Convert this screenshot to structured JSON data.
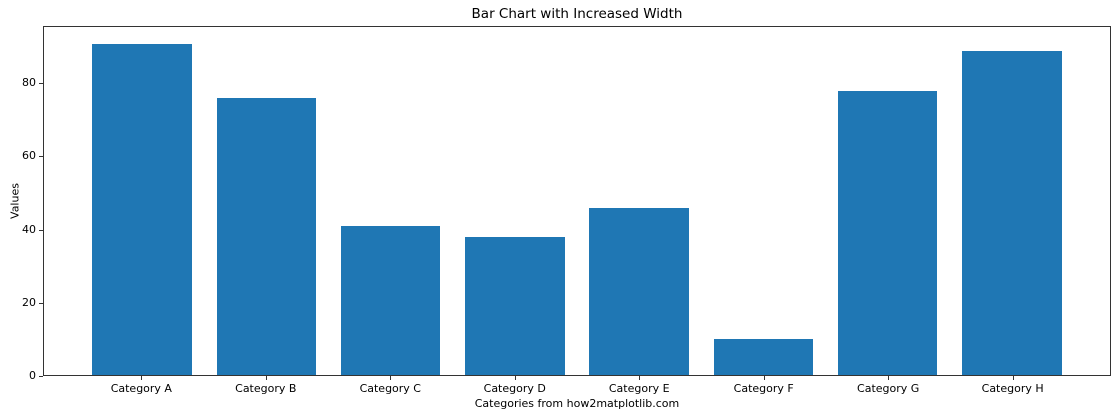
{
  "figure": {
    "background": "#ffffff",
    "frame_color": "#333333"
  },
  "chart_data": {
    "type": "bar",
    "title": "Bar Chart with Increased Width",
    "xlabel": "Categories from how2matplotlib.com",
    "ylabel": "Values",
    "categories": [
      "Category A",
      "Category B",
      "Category C",
      "Category D",
      "Category E",
      "Category F",
      "Category G",
      "Category H"
    ],
    "values": [
      91,
      76,
      41,
      38,
      46,
      10,
      78,
      89
    ],
    "bar_color": "#1f77b4",
    "bar_width": 0.8,
    "xlim": [
      -0.79,
      7.79
    ],
    "ylim": [
      0,
      95.6
    ],
    "yticks": [
      0,
      20,
      40,
      60,
      80
    ],
    "grid": false,
    "legend": "none",
    "text_color": "#000000"
  }
}
